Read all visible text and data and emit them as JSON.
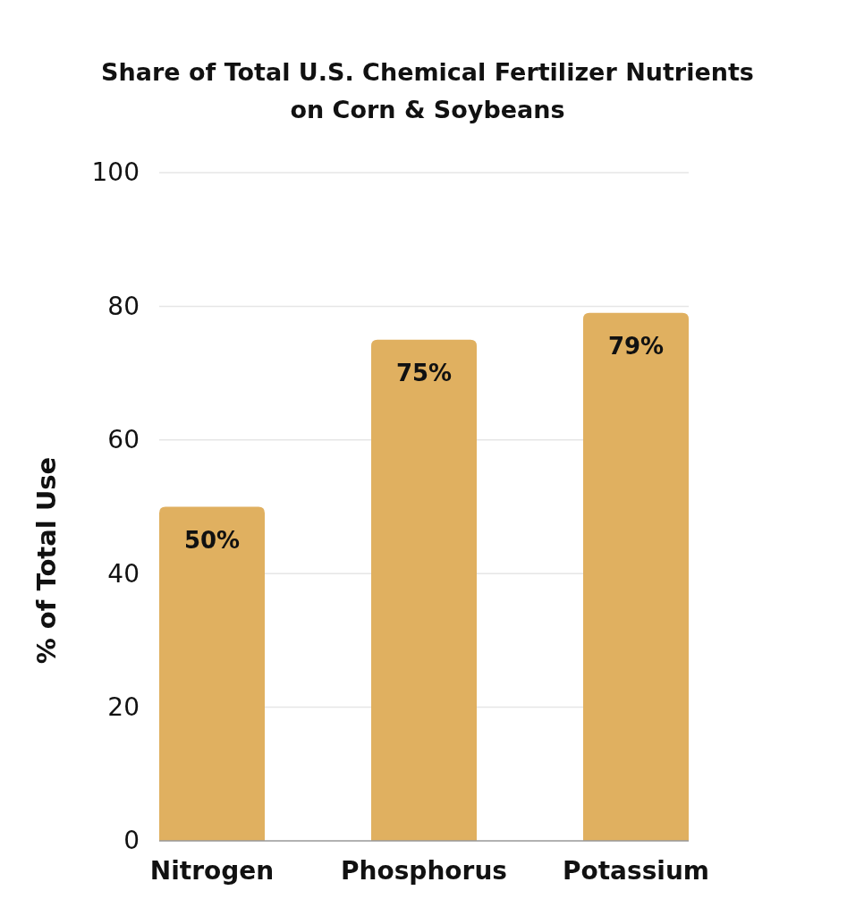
{
  "chart_data": {
    "type": "bar",
    "title": "Share of Total U.S. Chemical Fertilizer Nutrients on Corn & Soybeans",
    "ylabel": "% of Total Use",
    "categories": [
      "Nitrogen",
      "Phosphorus",
      "Potassium"
    ],
    "values": [
      50,
      75,
      79
    ],
    "value_labels": [
      "50%",
      "75%",
      "79%"
    ],
    "color": "#e0b060",
    "ylim": [
      0,
      100
    ],
    "yticks": [
      0,
      20,
      40,
      60,
      80,
      100
    ],
    "grid": "y"
  }
}
